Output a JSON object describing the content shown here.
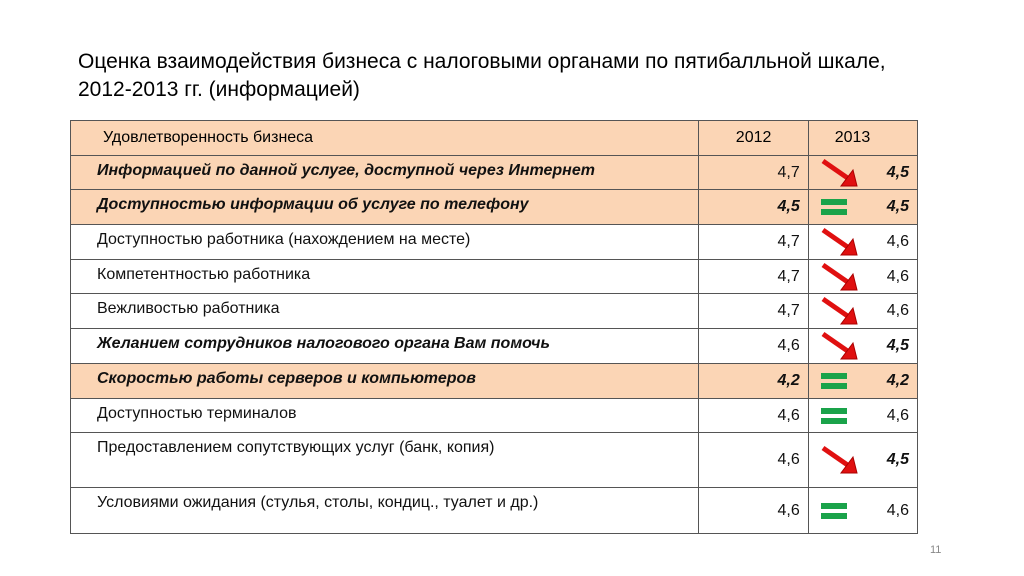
{
  "header": {
    "title": "Оценка взаимодействия бизнеса с налоговыми органами по пятибалльной шкале, 2012-2013 гг. (информацией)"
  },
  "table": {
    "columns": [
      "Удовлетворенность бизнеса",
      "2012",
      "2013"
    ],
    "rows": [
      [
        "Информацией по данной услуге, доступной через Интернет",
        "4,7",
        "4,5"
      ],
      [
        "Доступностью информации об услуге по телефону",
        "4,5",
        "4,5"
      ],
      [
        "Доступностью работника (нахождением на месте)",
        "4,7",
        "4,6"
      ],
      [
        "Компетентностью работника",
        "4,7",
        "4,6"
      ],
      [
        "Вежливостью работника",
        "4,7",
        "4,6"
      ],
      [
        "Желанием сотрудников налогового органа Вам помочь",
        "4,6",
        "4,5"
      ],
      [
        "Скоростью работы серверов и компьютеров",
        "4,2",
        "4,2"
      ],
      [
        "Доступностью терминалов",
        "4,6",
        "4,6"
      ],
      [
        "Предоставлением сопутствующих услуг (банк, копия)",
        "4,6",
        "4,5"
      ],
      [
        "Условиями ожидания (стулья, столы, кондиц., туалет и др.)",
        "4,6",
        "4,6"
      ]
    ]
  },
  "footer": {
    "page_number": "11"
  }
}
